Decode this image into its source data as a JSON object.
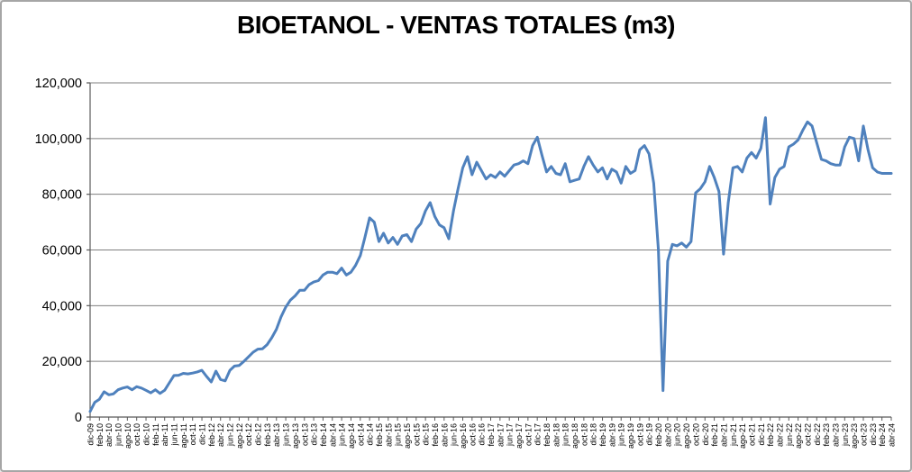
{
  "chart_data": {
    "type": "line",
    "title": "BIOETANOL - VENTAS TOTALES (m3)",
    "xlabel": "",
    "ylabel": "",
    "ylim": [
      0,
      120000
    ],
    "ytick_step": 20000,
    "ytick_labels": [
      "0",
      "20,000",
      "40,000",
      "60,000",
      "80,000",
      "100,000",
      "120,000"
    ],
    "xtick_every": 2,
    "grid": true,
    "legend": null,
    "x": [
      "dic-09",
      "ene-10",
      "feb-10",
      "mar-10",
      "abr-10",
      "may-10",
      "jun-10",
      "jul-10",
      "ago-10",
      "sep-10",
      "oct-10",
      "nov-10",
      "dic-10",
      "ene-11",
      "feb-11",
      "mar-11",
      "abr-11",
      "may-11",
      "jun-11",
      "jul-11",
      "ago-11",
      "sep-11",
      "oct-11",
      "nov-11",
      "dic-11",
      "ene-12",
      "feb-12",
      "mar-12",
      "abr-12",
      "may-12",
      "jun-12",
      "jul-12",
      "ago-12",
      "sep-12",
      "oct-12",
      "nov-12",
      "dic-12",
      "ene-13",
      "feb-13",
      "mar-13",
      "abr-13",
      "may-13",
      "jun-13",
      "jul-13",
      "ago-13",
      "sep-13",
      "oct-13",
      "nov-13",
      "dic-13",
      "ene-14",
      "feb-14",
      "mar-14",
      "abr-14",
      "may-14",
      "jun-14",
      "jul-14",
      "ago-14",
      "sep-14",
      "oct-14",
      "nov-14",
      "dic-14",
      "ene-15",
      "feb-15",
      "mar-15",
      "abr-15",
      "may-15",
      "jun-15",
      "jul-15",
      "ago-15",
      "sep-15",
      "oct-15",
      "nov-15",
      "dic-15",
      "ene-16",
      "feb-16",
      "mar-16",
      "abr-16",
      "may-16",
      "jun-16",
      "jul-16",
      "ago-16",
      "sep-16",
      "oct-16",
      "nov-16",
      "dic-16",
      "ene-17",
      "feb-17",
      "mar-17",
      "abr-17",
      "may-17",
      "jun-17",
      "jul-17",
      "ago-17",
      "sep-17",
      "oct-17",
      "nov-17",
      "dic-17",
      "ene-18",
      "feb-18",
      "mar-18",
      "abr-18",
      "may-18",
      "jun-18",
      "jul-18",
      "ago-18",
      "sep-18",
      "oct-18",
      "nov-18",
      "dic-18",
      "ene-19",
      "feb-19",
      "mar-19",
      "abr-19",
      "may-19",
      "jun-19",
      "jul-19",
      "ago-19",
      "sep-19",
      "oct-19",
      "nov-19",
      "dic-19",
      "ene-20",
      "feb-20",
      "mar-20",
      "abr-20",
      "may-20",
      "jun-20",
      "jul-20",
      "ago-20",
      "sep-20",
      "oct-20",
      "nov-20",
      "dic-20",
      "ene-21",
      "feb-21",
      "mar-21",
      "abr-21",
      "may-21",
      "jun-21",
      "jul-21",
      "ago-21",
      "sep-21",
      "oct-21",
      "nov-21",
      "dic-21",
      "ene-22",
      "feb-22",
      "mar-22",
      "abr-22",
      "may-22",
      "jun-22",
      "jul-22",
      "ago-22",
      "sep-22",
      "oct-22",
      "nov-22",
      "dic-22",
      "ene-23",
      "feb-23",
      "mar-23",
      "abr-23",
      "may-23",
      "jun-23",
      "jul-23",
      "ago-23",
      "sep-23",
      "oct-23",
      "nov-23",
      "dic-23",
      "ene-24",
      "feb-24",
      "mar-24",
      "abr-24"
    ],
    "values": [
      2000,
      5300,
      6400,
      9100,
      8000,
      8300,
      9800,
      10400,
      10800,
      9800,
      10900,
      10400,
      9600,
      8700,
      9800,
      8500,
      9600,
      12300,
      14900,
      15000,
      15700,
      15500,
      15800,
      16200,
      16800,
      14600,
      12600,
      16500,
      13500,
      13000,
      16800,
      18300,
      18500,
      20000,
      21600,
      23300,
      24400,
      24500,
      26000,
      28500,
      31500,
      36000,
      39500,
      42000,
      43500,
      45500,
      45500,
      47500,
      48500,
      49000,
      51000,
      52000,
      52000,
      51500,
      53500,
      51000,
      52000,
      54500,
      58000,
      64500,
      71500,
      70000,
      63000,
      66000,
      62500,
      64500,
      62000,
      65000,
      65500,
      63000,
      67500,
      69500,
      74000,
      77000,
      72000,
      69000,
      68000,
      64000,
      74000,
      82000,
      89500,
      93500,
      87000,
      91500,
      88500,
      85500,
      87000,
      86000,
      88000,
      86500,
      88500,
      90500,
      91000,
      92000,
      91000,
      97500,
      100500,
      94000,
      88000,
      90000,
      87500,
      87000,
      91000,
      84500,
      85000,
      85500,
      90000,
      93500,
      90500,
      88000,
      89500,
      85500,
      89000,
      88000,
      84000,
      90000,
      87500,
      88500,
      96000,
      97500,
      94500,
      84000,
      60000,
      9500,
      56000,
      62000,
      61500,
      62500,
      61000,
      63000,
      80500,
      82000,
      84500,
      90000,
      86000,
      81000,
      58500,
      77000,
      89500,
      90000,
      88000,
      93000,
      95000,
      93000,
      96500,
      107500,
      76500,
      86000,
      89000,
      90000,
      97000,
      98000,
      99500,
      103000,
      106000,
      104500,
      98500,
      92500,
      92000,
      91000,
      90500,
      90500,
      97000,
      100500,
      100000,
      92000,
      104500,
      96000,
      89500,
      88000,
      87500,
      87500,
      87500
    ],
    "colors": {
      "line": "#4F81BD",
      "gridline": "#7F7F7F",
      "axis": "#595959",
      "text": "#000000",
      "border": "#A6A6A6",
      "background": "#FFFFFF"
    }
  }
}
